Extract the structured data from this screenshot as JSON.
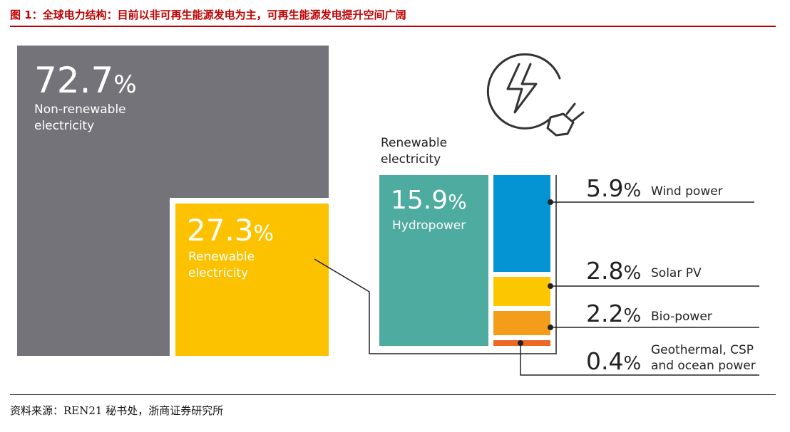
{
  "header": {
    "title": "图 1：全球电力结构：目前以非可再生能源发电为主，可再生能源发电提升空间广阔"
  },
  "footer": {
    "source": "资料来源：REN21 秘书处，浙商证券研究所"
  },
  "colors": {
    "nonrenewable": "#75737a",
    "renewable": "#fcc200",
    "hydro": "#4dab9f",
    "wind": "#0494d3",
    "solar": "#fcc700",
    "bio": "#f39d1a",
    "geo": "#ec6824",
    "title_red": "#c00000"
  },
  "icons": [
    "electric-plug-icon"
  ],
  "chart_data": {
    "type": "treemap",
    "title": "",
    "renewable_group_label": "Renewable electricity",
    "primary": [
      {
        "name": "Non-renewable electricity",
        "label_lines": [
          "Non-renewable",
          "electricity"
        ],
        "value": 72.7,
        "value_label": "72.7",
        "unit": "%"
      },
      {
        "name": "Renewable electricity",
        "label_lines": [
          "Renewable",
          "electricity"
        ],
        "value": 27.3,
        "value_label": "27.3",
        "unit": "%"
      }
    ],
    "breakdown": [
      {
        "name": "Hydropower",
        "value": 15.9,
        "value_label": "15.9",
        "unit": "%"
      },
      {
        "name": "Wind power",
        "value": 5.9,
        "value_label": "5.9",
        "unit": "%"
      },
      {
        "name": "Solar PV",
        "value": 2.8,
        "value_label": "2.8",
        "unit": "%"
      },
      {
        "name": "Bio-power",
        "value": 2.2,
        "value_label": "2.2",
        "unit": "%"
      },
      {
        "name": "Geothermal, CSP and ocean power",
        "label_lines": [
          "Geothermal, CSP",
          "and ocean power"
        ],
        "value": 0.4,
        "value_label": "0.4",
        "unit": "%"
      }
    ]
  }
}
